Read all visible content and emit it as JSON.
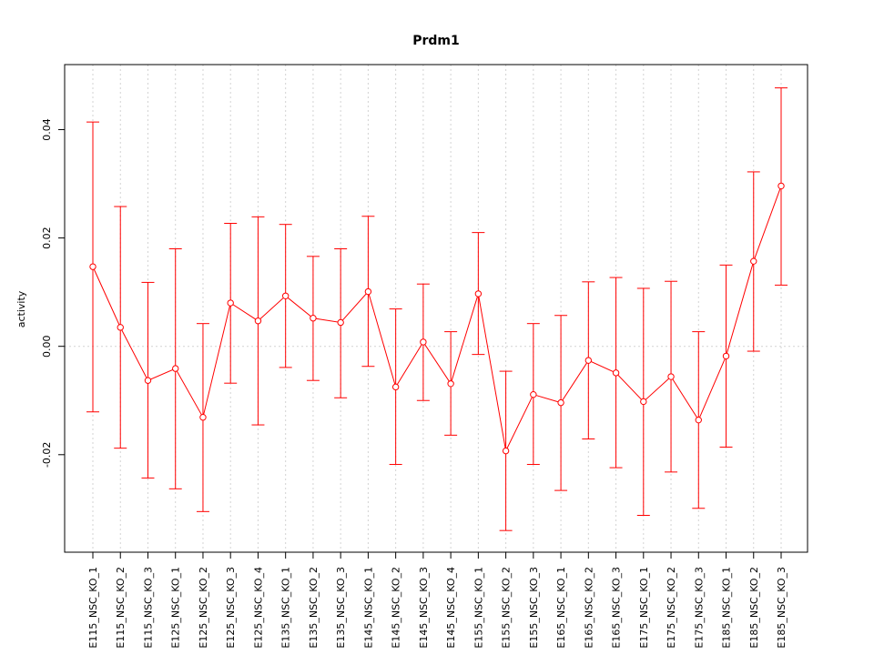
{
  "chart_data": {
    "type": "line",
    "title": "Prdm1",
    "xlabel": "",
    "ylabel": "activity",
    "ylim": [
      -0.038,
      0.052
    ],
    "y_ticks": [
      -0.02,
      0.0,
      0.02,
      0.04
    ],
    "y_tick_labels": [
      "-0.02",
      "0.00",
      "0.02",
      "0.04"
    ],
    "grid": true,
    "colors": {
      "series": "#ff0000",
      "grid": "#d3d3d3",
      "axis": "#000000"
    },
    "categories": [
      "E115_NSC_KO_1",
      "E115_NSC_KO_2",
      "E115_NSC_KO_3",
      "E125_NSC_KO_1",
      "E125_NSC_KO_2",
      "E125_NSC_KO_3",
      "E125_NSC_KO_4",
      "E135_NSC_KO_1",
      "E135_NSC_KO_2",
      "E135_NSC_KO_3",
      "E145_NSC_KO_1",
      "E145_NSC_KO_2",
      "E145_NSC_KO_3",
      "E145_NSC_KO_4",
      "E155_NSC_KO_1",
      "E155_NSC_KO_2",
      "E155_NSC_KO_3",
      "E165_NSC_KO_1",
      "E165_NSC_KO_2",
      "E165_NSC_KO_3",
      "E175_NSC_KO_1",
      "E175_NSC_KO_2",
      "E175_NSC_KO_3",
      "E185_NSC_KO_1",
      "E185_NSC_KO_2",
      "E185_NSC_KO_3"
    ],
    "series": [
      {
        "values": [
          0.0147,
          0.0035,
          -0.0063,
          -0.0041,
          -0.0131,
          0.008,
          0.0047,
          0.0093,
          0.0052,
          0.0044,
          0.0101,
          -0.0075,
          0.0008,
          -0.0069,
          0.0097,
          -0.0193,
          -0.0089,
          -0.0104,
          -0.0026,
          -0.0049,
          -0.0102,
          -0.0056,
          -0.0136,
          -0.0018,
          0.0157,
          0.0296
        ],
        "upper": [
          0.0414,
          0.0258,
          0.0118,
          0.018,
          0.0042,
          0.0227,
          0.0239,
          0.0225,
          0.0166,
          0.018,
          0.024,
          0.0069,
          0.0115,
          0.0027,
          0.021,
          -0.0046,
          0.0042,
          0.0057,
          0.0119,
          0.0127,
          0.0107,
          0.012,
          0.0027,
          0.015,
          0.0322,
          0.0477
        ],
        "lower": [
          -0.0121,
          -0.0188,
          -0.0243,
          -0.0263,
          -0.0305,
          -0.0068,
          -0.0145,
          -0.0039,
          -0.0063,
          -0.0095,
          -0.0037,
          -0.0218,
          -0.01,
          -0.0164,
          -0.0015,
          -0.034,
          -0.0218,
          -0.0266,
          -0.0171,
          -0.0224,
          -0.0312,
          -0.0232,
          -0.0299,
          -0.0186,
          -0.0009,
          0.0113
        ]
      }
    ]
  }
}
